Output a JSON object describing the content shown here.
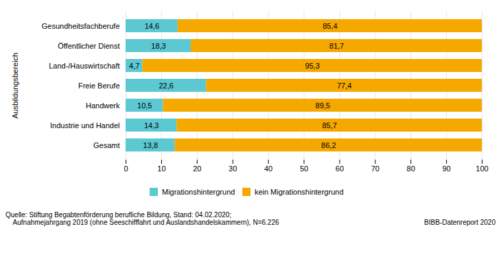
{
  "chart_data": {
    "type": "bar",
    "orientation": "horizontal",
    "stacked": true,
    "categories": [
      "Gesundheitsfachberufe",
      "Öffentlicher Dienst",
      "Land-/Hauswirtschaft",
      "Freie Berufe",
      "Handwerk",
      "Industrie und Handel",
      "Gesamt"
    ],
    "series": [
      {
        "name": "Migrationshintergrund",
        "color": "#5bc8d2",
        "values": [
          14.6,
          18.3,
          4.7,
          22.6,
          10.5,
          14.3,
          13.8
        ],
        "value_labels": [
          "14,6",
          "18,3",
          "4,7",
          "22,6",
          "10,5",
          "14,3",
          "13,8"
        ]
      },
      {
        "name": "kein Migrationshintergrund",
        "color": "#f5a800",
        "values": [
          85.4,
          81.7,
          95.3,
          77.4,
          89.5,
          85.7,
          86.2
        ],
        "value_labels": [
          "85,4",
          "81,7",
          "95,3",
          "77,4",
          "89,5",
          "85,7",
          "86,2"
        ]
      }
    ],
    "ylabel": "Ausbildungsbereich",
    "xlim": [
      0,
      100
    ],
    "xticks": [
      0,
      10,
      20,
      30,
      40,
      50,
      60,
      70,
      80,
      90,
      100
    ],
    "grid": true,
    "legend": "bottom",
    "data_labels": true,
    "annotations": [
      "Quelle: Stiftung Begabtenförderung berufliche Bildung, Stand: 04.02.2020;",
      "    Aufnahmejahrgang 2019 (ohne Seeschifffahrt und Auslandshandelskammern), N=6.226",
      "BIBB-Datenreport 2020"
    ]
  }
}
